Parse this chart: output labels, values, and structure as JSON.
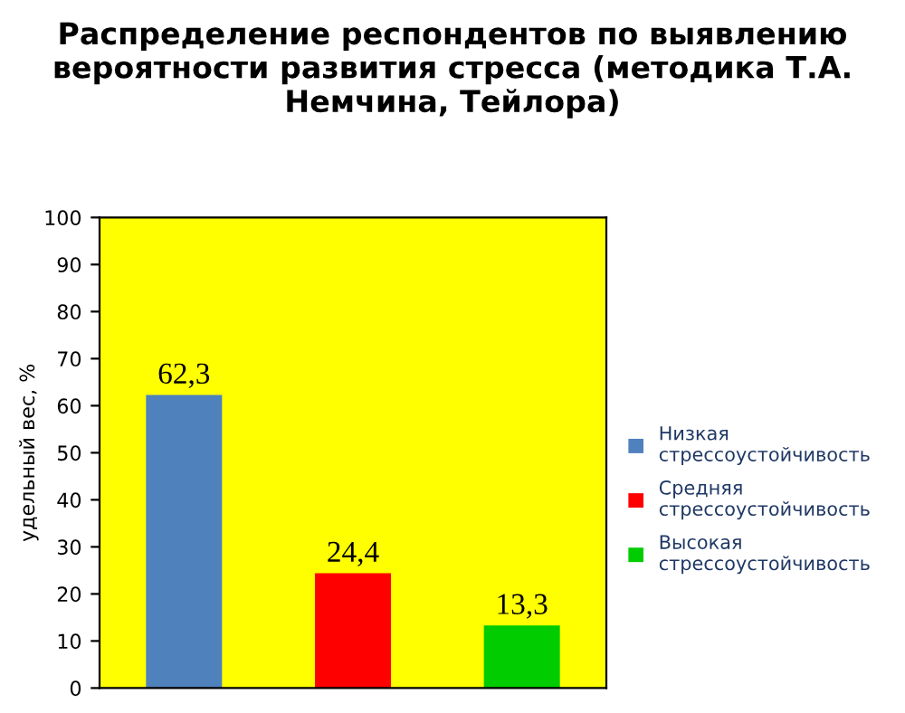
{
  "chart_data": {
    "type": "bar",
    "title": "Распределение респондентов по выявлению вероятности развития стресса (методика Т.А. Немчина, Тейлора)",
    "ylabel": "удельный вес, %",
    "categories": [
      null,
      null,
      null
    ],
    "series": [
      {
        "name": "Низкая стрессоустойчивость",
        "color": "#4f81bd",
        "values": [
          62.3,
          null,
          null
        ],
        "value_labels": [
          "62,3",
          null,
          null
        ]
      },
      {
        "name": "Средняя стрессоустойчивость",
        "color": "#ff0000",
        "values": [
          null,
          24.4,
          null
        ],
        "value_labels": [
          null,
          "24,4",
          null
        ]
      },
      {
        "name": "Высокая стрессоустойчивость",
        "color": "#00cc00",
        "values": [
          null,
          null,
          13.3
        ],
        "value_labels": [
          null,
          null,
          "13,3"
        ]
      }
    ],
    "ylim": [
      0,
      100
    ],
    "yticks": [
      0,
      10,
      20,
      30,
      40,
      50,
      60,
      70,
      80,
      90,
      100
    ],
    "grid": false,
    "legend": "right"
  }
}
